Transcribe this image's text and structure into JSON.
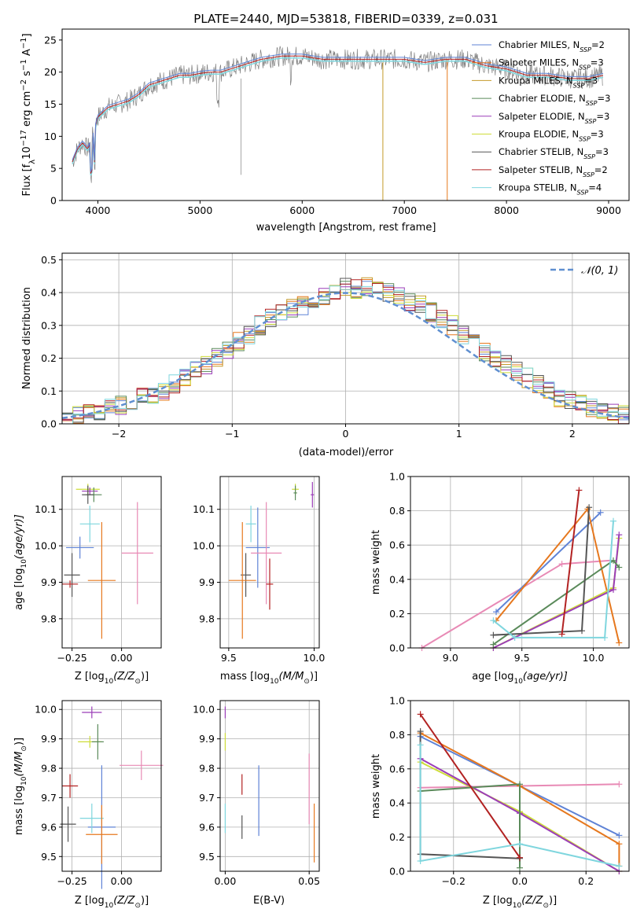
{
  "colors": {
    "grid": "#b0b0b0",
    "cm": "#5f83d6",
    "sm": "#e6781e",
    "km": "#c49a2a",
    "ce": "#5a8a5a",
    "se": "#9b3db8",
    "ke": "#cddc39",
    "cs": "#555555",
    "ss": "#b22222",
    "ks": "#7fd6de",
    "pink": "#e88ab5",
    "spectrum": "#808080"
  },
  "chart_data": [
    {
      "type": "line",
      "title": "PLATE=2440, MJD=53818, FIBERID=0339, z=0.031",
      "xlabel": "wavelength [Angstrom, rest frame]",
      "ylabel": "Flux [f",
      "ylabel_lambda": "λ",
      "ylabel_rest": "10",
      "ylabel_exp1": "−17",
      "ylabel_units": " erg cm",
      "ylabel_exp2": "−2",
      "ylabel_s": " s",
      "ylabel_exp3": "−1",
      "ylabel_A": " A",
      "ylabel_exp4": "−1",
      "ylabel_close": "]",
      "xlim": [
        3650,
        9200
      ],
      "ylim": [
        0,
        26.7
      ],
      "xticks": [
        "4000",
        "5000",
        "6000",
        "7000",
        "8000",
        "9000"
      ],
      "yticks": [
        "0",
        "5",
        "10",
        "15",
        "20",
        "25"
      ],
      "continuum": [
        [
          3750,
          6
        ],
        [
          3800,
          8
        ],
        [
          3850,
          9
        ],
        [
          3900,
          8
        ],
        [
          3950,
          10
        ],
        [
          4000,
          13
        ],
        [
          4100,
          14.5
        ],
        [
          4200,
          15
        ],
        [
          4300,
          15.5
        ],
        [
          4400,
          16.5
        ],
        [
          4500,
          18
        ],
        [
          4600,
          18.5
        ],
        [
          4700,
          19
        ],
        [
          4800,
          19.5
        ],
        [
          4900,
          19.5
        ],
        [
          5000,
          19.8
        ],
        [
          5100,
          20
        ],
        [
          5200,
          20
        ],
        [
          5300,
          20.5
        ],
        [
          5400,
          21
        ],
        [
          5500,
          21.5
        ],
        [
          5600,
          22
        ],
        [
          5800,
          22.5
        ],
        [
          6000,
          22.5
        ],
        [
          6200,
          22
        ],
        [
          6400,
          22
        ],
        [
          6600,
          22
        ],
        [
          6800,
          22
        ],
        [
          7000,
          22
        ],
        [
          7200,
          21.5
        ],
        [
          7400,
          22
        ],
        [
          7600,
          22
        ],
        [
          7800,
          21
        ],
        [
          8000,
          20.5
        ],
        [
          8200,
          19.5
        ],
        [
          8400,
          19.5
        ],
        [
          8600,
          19
        ],
        [
          8800,
          19
        ],
        [
          8950,
          19.5
        ]
      ],
      "legend": [
        {
          "name": "Chabrier MILES, N",
          "sub": "SSP",
          "n": "=2",
          "color": "#5f83d6"
        },
        {
          "name": "Salpeter MILES, N",
          "sub": "SSP",
          "n": "=3",
          "color": "#e6781e"
        },
        {
          "name": "Kroupa MILES, N",
          "sub": "SSP",
          "n": "=3",
          "color": "#c49a2a"
        },
        {
          "name": "Chabrier ELODIE, N",
          "sub": "SSP",
          "n": "=3",
          "color": "#5a8a5a"
        },
        {
          "name": "Salpeter ELODIE, N",
          "sub": "SSP",
          "n": "=3",
          "color": "#9b3db8"
        },
        {
          "name": "Kroupa ELODIE, N",
          "sub": "SSP",
          "n": "=3",
          "color": "#cddc39"
        },
        {
          "name": "Chabrier STELIB, N",
          "sub": "SSP",
          "n": "=3",
          "color": "#555555"
        },
        {
          "name": "Salpeter STELIB, N",
          "sub": "SSP",
          "n": "=2",
          "color": "#b22222"
        },
        {
          "name": "Kroupa STELIB, N",
          "sub": "SSP",
          "n": "=4",
          "color": "#7fd6de"
        }
      ]
    },
    {
      "type": "line",
      "xlabel": "(data-model)/error",
      "ylabel": "Normed distribution",
      "xlim": [
        -2.5,
        2.5
      ],
      "ylim": [
        0,
        0.52
      ],
      "xticks": [
        "−2",
        "−1",
        "0",
        "1",
        "2"
      ],
      "yticks": [
        "0.0",
        "0.1",
        "0.2",
        "0.3",
        "0.4",
        "0.5"
      ],
      "legend_label": "𝒩(0, 1)",
      "normal_color": "#5f8fd0",
      "hist_base": [
        0.02,
        0.025,
        0.03,
        0.04,
        0.05,
        0.055,
        0.065,
        0.08,
        0.09,
        0.1,
        0.12,
        0.14,
        0.16,
        0.18,
        0.2,
        0.22,
        0.25,
        0.27,
        0.3,
        0.32,
        0.34,
        0.35,
        0.36,
        0.38,
        0.39,
        0.4,
        0.42,
        0.41,
        0.42,
        0.41,
        0.4,
        0.39,
        0.37,
        0.36,
        0.34,
        0.32,
        0.3,
        0.27,
        0.25,
        0.22,
        0.2,
        0.18,
        0.16,
        0.14,
        0.12,
        0.1,
        0.08,
        0.07,
        0.06,
        0.05,
        0.04,
        0.035,
        0.03
      ]
    },
    {
      "type": "scatter",
      "xlabel": "Z [log",
      "xlabel_sub": "10",
      "xlabel_rest": "(Z/Z",
      "xlabel_sun": "⊙",
      "xlabel_close": ")]",
      "ylabel": "age  [log",
      "ylabel_sub": "10",
      "ylabel_rest": "(age/yr)]",
      "xlim": [
        -0.3,
        0.2
      ],
      "ylim": [
        9.72,
        10.19
      ],
      "xticks": [
        "−0.25",
        "0.00"
      ],
      "yticks": [
        "9.8",
        "9.9",
        "10.0",
        "10.1"
      ],
      "errorbars": [
        {
          "x": -0.17,
          "y": 10.155,
          "xerr": 0.06,
          "yerr": 0.015,
          "color": "#cddc39"
        },
        {
          "x": -0.16,
          "y": 10.15,
          "xerr": 0.04,
          "yerr": 0.01,
          "color": "#9b3db8"
        },
        {
          "x": -0.14,
          "y": 10.14,
          "xerr": 0.04,
          "yerr": 0.02,
          "color": "#5a8a5a"
        },
        {
          "x": -0.17,
          "y": 10.14,
          "xerr": 0.03,
          "yerr": 0.025,
          "color": "#555555"
        },
        {
          "x": -0.16,
          "y": 10.06,
          "xerr": 0.05,
          "yerr": 0.05,
          "color": "#7fd6de"
        },
        {
          "x": -0.21,
          "y": 9.995,
          "xerr": 0.07,
          "yerr": 0.03,
          "color": "#5f83d6"
        },
        {
          "x": 0.08,
          "y": 9.98,
          "xerr": 0.08,
          "yerr": 0.14,
          "color": "#e88ab5"
        },
        {
          "x": -0.25,
          "y": 9.92,
          "xerr": 0.04,
          "yerr": 0.06,
          "color": "#555555"
        },
        {
          "x": -0.1,
          "y": 9.905,
          "xerr": 0.07,
          "yerr": 0.16,
          "color": "#e6781e"
        },
        {
          "x": -0.26,
          "y": 9.895,
          "xerr": 0.04,
          "yerr": 0.01,
          "color": "#b22222"
        }
      ]
    },
    {
      "type": "scatter",
      "xlabel": "mass [log",
      "xlabel_sub": "10",
      "xlabel_rest": "(M/M",
      "xlabel_sun": "⊙",
      "xlabel_close": ")]",
      "xlim": [
        9.45,
        10.03
      ],
      "ylim": [
        9.72,
        10.19
      ],
      "xticks": [
        "9.5",
        "10.0"
      ],
      "yticks": [
        "9.8",
        "9.9",
        "10.0",
        "10.1"
      ],
      "errorbars": [
        {
          "x": 9.89,
          "y": 10.155,
          "xerr": 0.02,
          "yerr": 0.015,
          "color": "#cddc39"
        },
        {
          "x": 9.99,
          "y": 10.14,
          "xerr": 0.01,
          "yerr": 0.035,
          "color": "#9b3db8"
        },
        {
          "x": 9.89,
          "y": 10.145,
          "xerr": 0.01,
          "yerr": 0.02,
          "color": "#5a8a5a"
        },
        {
          "x": 9.63,
          "y": 10.06,
          "xerr": 0.03,
          "yerr": 0.05,
          "color": "#7fd6de"
        },
        {
          "x": 9.67,
          "y": 9.995,
          "xerr": 0.07,
          "yerr": 0.11,
          "color": "#5f83d6"
        },
        {
          "x": 9.72,
          "y": 9.98,
          "xerr": 0.09,
          "yerr": 0.14,
          "color": "#e88ab5"
        },
        {
          "x": 9.6,
          "y": 9.92,
          "xerr": 0.03,
          "yerr": 0.06,
          "color": "#555555"
        },
        {
          "x": 9.58,
          "y": 9.905,
          "xerr": 0.08,
          "yerr": 0.16,
          "color": "#e6781e"
        },
        {
          "x": 9.74,
          "y": 9.895,
          "xerr": 0.02,
          "yerr": 0.07,
          "color": "#b22222"
        }
      ]
    },
    {
      "type": "line",
      "xlabel": "age  [log",
      "xlabel_sub": "10",
      "xlabel_rest": "(age/yr)]",
      "ylabel": "mass weight",
      "xlim": [
        8.72,
        10.25
      ],
      "ylim": [
        0,
        1.0
      ],
      "xticks": [
        "9.0",
        "9.5",
        "10.0"
      ],
      "yticks": [
        "0.0",
        "0.2",
        "0.4",
        "0.6",
        "0.8",
        "1.0"
      ],
      "lines": [
        {
          "color": "#e88ab5",
          "points": [
            [
              8.8,
              0.0
            ],
            [
              9.78,
              0.49
            ],
            [
              10.12,
              0.51
            ]
          ]
        },
        {
          "color": "#5f83d6",
          "points": [
            [
              9.32,
              0.21
            ],
            [
              10.05,
              0.79
            ]
          ]
        },
        {
          "color": "#e6781e",
          "points": [
            [
              9.32,
              0.16
            ],
            [
              9.96,
              0.81
            ],
            [
              10.18,
              0.03
            ]
          ]
        },
        {
          "color": "#cddc39",
          "points": [
            [
              9.3,
              0.0
            ],
            [
              10.14,
              0.35
            ],
            [
              10.18,
              0.64
            ]
          ]
        },
        {
          "color": "#9b3db8",
          "points": [
            [
              9.3,
              0.0
            ],
            [
              10.14,
              0.34
            ],
            [
              10.18,
              0.66
            ]
          ]
        },
        {
          "color": "#5a8a5a",
          "points": [
            [
              9.3,
              0.02
            ],
            [
              10.14,
              0.51
            ],
            [
              10.18,
              0.47
            ]
          ]
        },
        {
          "color": "#555555",
          "points": [
            [
              9.3,
              0.075
            ],
            [
              9.92,
              0.1
            ],
            [
              9.97,
              0.82
            ]
          ]
        },
        {
          "color": "#b22222",
          "points": [
            [
              9.78,
              0.08
            ],
            [
              9.9,
              0.92
            ]
          ]
        },
        {
          "color": "#7fd6de",
          "points": [
            [
              9.3,
              0.16
            ],
            [
              9.45,
              0.06
            ],
            [
              10.08,
              0.06
            ],
            [
              10.14,
              0.74
            ]
          ]
        }
      ]
    },
    {
      "type": "scatter",
      "xlabel": "Z [log",
      "xlabel_sub": "10",
      "xlabel_rest": "(Z/Z",
      "xlabel_sun": "⊙",
      "xlabel_close": ")]",
      "ylabel": "mass [log",
      "ylabel_sub": "10",
      "ylabel_rest": "(M/M",
      "ylabel_sun": "⊙",
      "ylabel_close": ")]",
      "xlim": [
        -0.3,
        0.2
      ],
      "ylim": [
        9.45,
        10.03
      ],
      "xticks": [
        "−0.25",
        "0.00"
      ],
      "yticks": [
        "9.5",
        "9.6",
        "9.7",
        "9.8",
        "9.9",
        "10.0"
      ],
      "errorbars": [
        {
          "x": -0.15,
          "y": 9.99,
          "xerr": 0.05,
          "yerr": 0.02,
          "color": "#9b3db8"
        },
        {
          "x": -0.16,
          "y": 9.89,
          "xerr": 0.06,
          "yerr": 0.02,
          "color": "#cddc39"
        },
        {
          "x": -0.12,
          "y": 9.89,
          "xerr": 0.03,
          "yerr": 0.06,
          "color": "#5a8a5a"
        },
        {
          "x": 0.1,
          "y": 9.81,
          "xerr": 0.11,
          "yerr": 0.05,
          "color": "#e88ab5"
        },
        {
          "x": -0.26,
          "y": 9.74,
          "xerr": 0.04,
          "yerr": 0.04,
          "color": "#b22222"
        },
        {
          "x": -0.1,
          "y": 9.6,
          "xerr": 0.07,
          "yerr": 0.21,
          "color": "#5f83d6"
        },
        {
          "x": -0.15,
          "y": 9.63,
          "xerr": 0.06,
          "yerr": 0.05,
          "color": "#7fd6de"
        },
        {
          "x": -0.27,
          "y": 9.61,
          "xerr": 0.04,
          "yerr": 0.06,
          "color": "#555555"
        },
        {
          "x": -0.1,
          "y": 9.575,
          "xerr": 0.08,
          "yerr": 0.1,
          "color": "#e6781e"
        }
      ]
    },
    {
      "type": "scatter",
      "xlabel": "E(B-V)",
      "xlim": [
        -0.003,
        0.056
      ],
      "ylim": [
        9.45,
        10.03
      ],
      "xticks": [
        "0.00",
        "0.05"
      ],
      "yticks": [
        "9.5",
        "9.6",
        "9.7",
        "9.8",
        "9.9",
        "10.0"
      ],
      "errorbars": [
        {
          "x": 0.0,
          "y": 9.99,
          "xerr": 0,
          "yerr": 0.02,
          "color": "#9b3db8"
        },
        {
          "x": 0.0,
          "y": 9.89,
          "xerr": 0,
          "yerr": 0.03,
          "color": "#cddc39"
        },
        {
          "x": 0.0,
          "y": 9.63,
          "xerr": 0,
          "yerr": 0.05,
          "color": "#7fd6de"
        },
        {
          "x": 0.01,
          "y": 9.745,
          "xerr": 0,
          "yerr": 0.035,
          "color": "#b22222"
        },
        {
          "x": 0.01,
          "y": 9.6,
          "xerr": 0,
          "yerr": 0.04,
          "color": "#555555"
        },
        {
          "x": 0.02,
          "y": 9.69,
          "xerr": 0,
          "yerr": 0.12,
          "color": "#5f83d6"
        },
        {
          "x": 0.05,
          "y": 9.73,
          "xerr": 0,
          "yerr": 0.12,
          "color": "#e88ab5"
        },
        {
          "x": 0.053,
          "y": 9.58,
          "xerr": 0,
          "yerr": 0.1,
          "color": "#e6781e"
        }
      ]
    },
    {
      "type": "line",
      "xlabel": "Z [log",
      "xlabel_sub": "10",
      "xlabel_rest": "(Z/Z",
      "xlabel_sun": "⊙",
      "xlabel_close": ")]",
      "ylabel": "mass weight",
      "xlim": [
        -0.33,
        0.33
      ],
      "ylim": [
        0,
        1.0
      ],
      "xticks": [
        "−0.2",
        "0.0",
        "0.2"
      ],
      "yticks": [
        "0.0",
        "0.2",
        "0.4",
        "0.6",
        "0.8",
        "1.0"
      ],
      "lines": [
        {
          "color": "#e88ab5",
          "points": [
            [
              -0.3,
              0.49
            ],
            [
              0.0,
              0.5
            ],
            [
              0.3,
              0.51
            ]
          ]
        },
        {
          "color": "#5f83d6",
          "points": [
            [
              -0.3,
              0.79
            ],
            [
              0.0,
              0.5
            ],
            [
              0.3,
              0.21
            ]
          ]
        },
        {
          "color": "#e6781e",
          "points": [
            [
              -0.3,
              0.81
            ],
            [
              0.0,
              0.5
            ],
            [
              0.3,
              0.16
            ],
            [
              0.3,
              0.03
            ]
          ]
        },
        {
          "color": "#cddc39",
          "points": [
            [
              -0.3,
              0.64
            ],
            [
              0.0,
              0.35
            ],
            [
              0.3,
              0.0
            ]
          ]
        },
        {
          "color": "#9b3db8",
          "points": [
            [
              -0.3,
              0.66
            ],
            [
              0.0,
              0.34
            ],
            [
              0.3,
              0.0
            ]
          ]
        },
        {
          "color": "#5a8a5a",
          "points": [
            [
              -0.3,
              0.47
            ],
            [
              0.0,
              0.51
            ],
            [
              0.0,
              0.02
            ]
          ]
        },
        {
          "color": "#555555",
          "points": [
            [
              -0.3,
              0.82
            ],
            [
              -0.3,
              0.1
            ],
            [
              0.0,
              0.075
            ]
          ]
        },
        {
          "color": "#b22222",
          "points": [
            [
              -0.3,
              0.92
            ],
            [
              0.0,
              0.08
            ]
          ]
        },
        {
          "color": "#7fd6de",
          "points": [
            [
              -0.3,
              0.74
            ],
            [
              -0.3,
              0.06
            ],
            [
              0.0,
              0.16
            ],
            [
              0.3,
              0.03
            ]
          ]
        }
      ]
    }
  ]
}
